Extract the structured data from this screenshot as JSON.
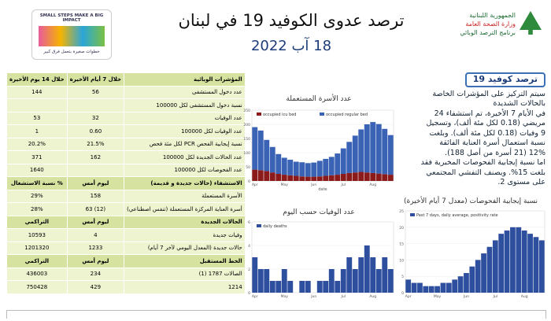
{
  "header": {
    "title": "ترصد عدوى الكوفيد 19 في لبنان",
    "date": "18 آب 2022",
    "ministry": [
      "الجمهورية اللبنانية",
      "وزارة الصحة العامة",
      "برنامج الترصد الوبائي"
    ],
    "logo_en": "SMALL STEPS MAKE A BIG IMPACT",
    "logo_ar": "خطوات صغيرة بتعمل فرق كبير"
  },
  "table": {
    "rows": [
      {
        "kind": "section",
        "cells": [
          "المؤشرات الوبائية",
          "خلال 7 أيام الأخيرة",
          "خلال 14 يوم الأخيرة"
        ]
      },
      {
        "kind": "data",
        "cells": [
          "عدد دخول المستشفى",
          "56",
          "144"
        ]
      },
      {
        "kind": "data",
        "cells": [
          "نسبة دخول المستشفى لكل 100000",
          null,
          null
        ]
      },
      {
        "kind": "data",
        "cells": [
          "عدد الوفيات",
          "32",
          "53"
        ]
      },
      {
        "kind": "data",
        "cells": [
          "عدد الوفيات لكل 100000",
          "0.60",
          "1"
        ]
      },
      {
        "kind": "data",
        "cells": [
          "نسبة إيجابية الفحص PCR لكل مئة فحص",
          "21.5%",
          "20.2%"
        ]
      },
      {
        "kind": "data",
        "cells": [
          "عدد الحالات الجديدة لكل 100000",
          "162",
          "371"
        ]
      },
      {
        "kind": "data",
        "cells": [
          "عدد الفحوصات لكل 100000",
          null,
          "1640"
        ]
      },
      {
        "kind": "section",
        "cells": [
          "الاستشفاء (حالات جديدة و قديمة)",
          "ليوم أمس",
          "% نسبة الاستشغال"
        ]
      },
      {
        "kind": "data",
        "cells": [
          "الأسرة المستعملة",
          "158",
          "29%"
        ]
      },
      {
        "kind": "data",
        "cells": [
          "أسرة العناية المركزة المستعملة (تنفس اصطناعي)",
          "(12) 63",
          "28%"
        ]
      },
      {
        "kind": "section",
        "cells": [
          "الحالات الجديدة",
          "ليوم أمس",
          "التراكمي"
        ]
      },
      {
        "kind": "data",
        "cells": [
          "وفيات جديدة",
          "4",
          "10593"
        ]
      },
      {
        "kind": "data",
        "cells": [
          "حالات جديدة (المعدل اليومي لآخر 7 أيام)",
          "1233",
          "1201320"
        ]
      },
      {
        "kind": "section",
        "cells": [
          "الخط المستقبل",
          "ليوم أمس",
          "التراكمي"
        ]
      },
      {
        "kind": "data",
        "cells": [
          "الصالات 1787 (1)",
          "234",
          "436003"
        ]
      },
      {
        "kind": "data",
        "cells": [
          "1214",
          "429",
          "750428"
        ]
      }
    ]
  },
  "summary": {
    "title": "ترصد كوفيد 19",
    "lines": [
      "سيتم التركيز على المؤشرات الخاصة",
      "بالحالات الشديدة",
      "في الأيام 7 الأخيرة، تم استشفاء 24",
      "مريضي (0.18 لكل مئة ألف)، وتسجيل",
      "9 وفيات (0.18 لكل مئة ألف). وبلغت",
      "نسبة استعمال أسرة العناية الفائقة",
      "12% (21 أسرة من أصل 188).",
      "اما نسبة إيجابية الفحوصات المخبرية فقد",
      "بلغت 15%. ويصنف التفشي المجتمعي",
      "على مستوى 2."
    ]
  },
  "chart_data": [
    {
      "type": "bar",
      "title": "عدد الأسرة المستعملة",
      "xlabel": "date",
      "categories": [
        "Apr",
        null,
        null,
        null,
        null,
        "May",
        null,
        null,
        null,
        null,
        "Jun",
        null,
        null,
        null,
        null,
        "Jul",
        null,
        null,
        null,
        null,
        "Aug",
        null,
        null,
        null
      ],
      "series": [
        {
          "name": "occupied icu bed",
          "color": "#8b1a1a",
          "values": [
            40,
            38,
            35,
            30,
            25,
            22,
            20,
            18,
            16,
            15,
            15,
            16,
            18,
            20,
            22,
            25,
            28,
            30,
            32,
            30,
            28,
            26,
            24,
            22
          ]
        },
        {
          "name": "occupied regular bed",
          "color": "#3b63b5",
          "values": [
            150,
            140,
            110,
            90,
            70,
            60,
            55,
            50,
            50,
            48,
            50,
            55,
            60,
            65,
            75,
            90,
            110,
            130,
            150,
            170,
            180,
            175,
            160,
            140
          ]
        }
      ],
      "ylim": [
        0,
        250
      ],
      "yticks": [
        0,
        50,
        100,
        150,
        200,
        250
      ]
    },
    {
      "type": "bar",
      "title": "عدد الوفيات حسب اليوم",
      "categories": [
        "Apr",
        null,
        null,
        null,
        null,
        "May",
        null,
        null,
        null,
        null,
        "Jun",
        null,
        null,
        null,
        null,
        "Jul",
        null,
        null,
        null,
        null,
        "Aug",
        null,
        null,
        null
      ],
      "series": [
        {
          "name": "daily deaths",
          "color": "#2d4f9e",
          "values": [
            3,
            2,
            2,
            1,
            1,
            2,
            1,
            0,
            1,
            1,
            0,
            1,
            1,
            2,
            1,
            2,
            3,
            2,
            3,
            4,
            3,
            2,
            3,
            2
          ]
        }
      ],
      "ylim": [
        0,
        6
      ],
      "yticks": [
        0,
        2,
        4,
        6
      ]
    },
    {
      "type": "bar",
      "title": "نسبة إيجابية الفحوصات (معدل 7 أيام الأخيرة)",
      "categories": [
        "Apr",
        null,
        null,
        null,
        null,
        "May",
        null,
        null,
        null,
        null,
        "Jun",
        null,
        null,
        null,
        null,
        "Jul",
        null,
        null,
        null,
        null,
        "Aug",
        null,
        null,
        null
      ],
      "series": [
        {
          "name": "Past 7 days, daily average, positivity rate",
          "color": "#2d4f9e",
          "values": [
            4,
            3,
            3,
            2,
            2,
            2,
            3,
            3,
            4,
            5,
            6,
            8,
            10,
            12,
            14,
            16,
            18,
            19,
            20,
            20,
            19,
            18,
            17,
            16
          ]
        }
      ],
      "ylim": [
        0,
        25
      ],
      "yticks": [
        0,
        5,
        10,
        15,
        20,
        25
      ]
    }
  ]
}
